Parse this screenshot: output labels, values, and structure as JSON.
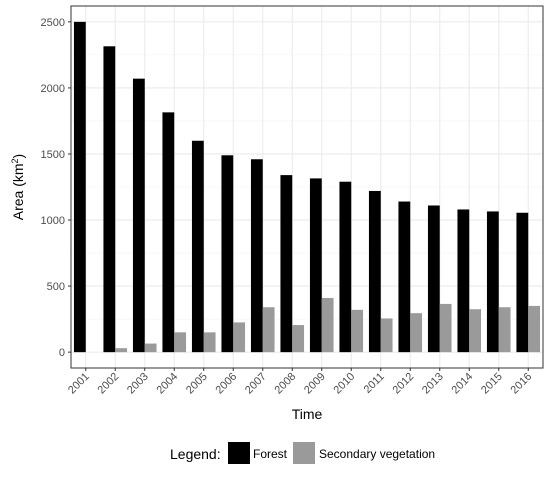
{
  "chart_data": {
    "type": "bar",
    "categories": [
      "2001",
      "2002",
      "2003",
      "2004",
      "2005",
      "2006",
      "2007",
      "2008",
      "2009",
      "2010",
      "2011",
      "2012",
      "2013",
      "2014",
      "2015",
      "2016"
    ],
    "series": [
      {
        "name": "Forest",
        "color": "#000000",
        "values": [
          2500,
          2315,
          2070,
          1815,
          1600,
          1490,
          1460,
          1340,
          1315,
          1290,
          1220,
          1140,
          1110,
          1080,
          1065,
          1055
        ]
      },
      {
        "name": "Secondary vegetation",
        "color": "#9a9a9a",
        "values": [
          0,
          30,
          65,
          150,
          150,
          225,
          340,
          205,
          410,
          320,
          255,
          295,
          365,
          325,
          340,
          350
        ]
      }
    ],
    "xlabel": "Time",
    "ylabel_main": "Area (km",
    "ylabel_sup": "2",
    "ylabel_end": ")",
    "ylim": [
      -120,
      2620
    ],
    "yticks": [
      0,
      500,
      1000,
      1500,
      2000,
      2500
    ],
    "grid": true,
    "legend": {
      "title": "Legend:",
      "placement": "bottom"
    }
  }
}
